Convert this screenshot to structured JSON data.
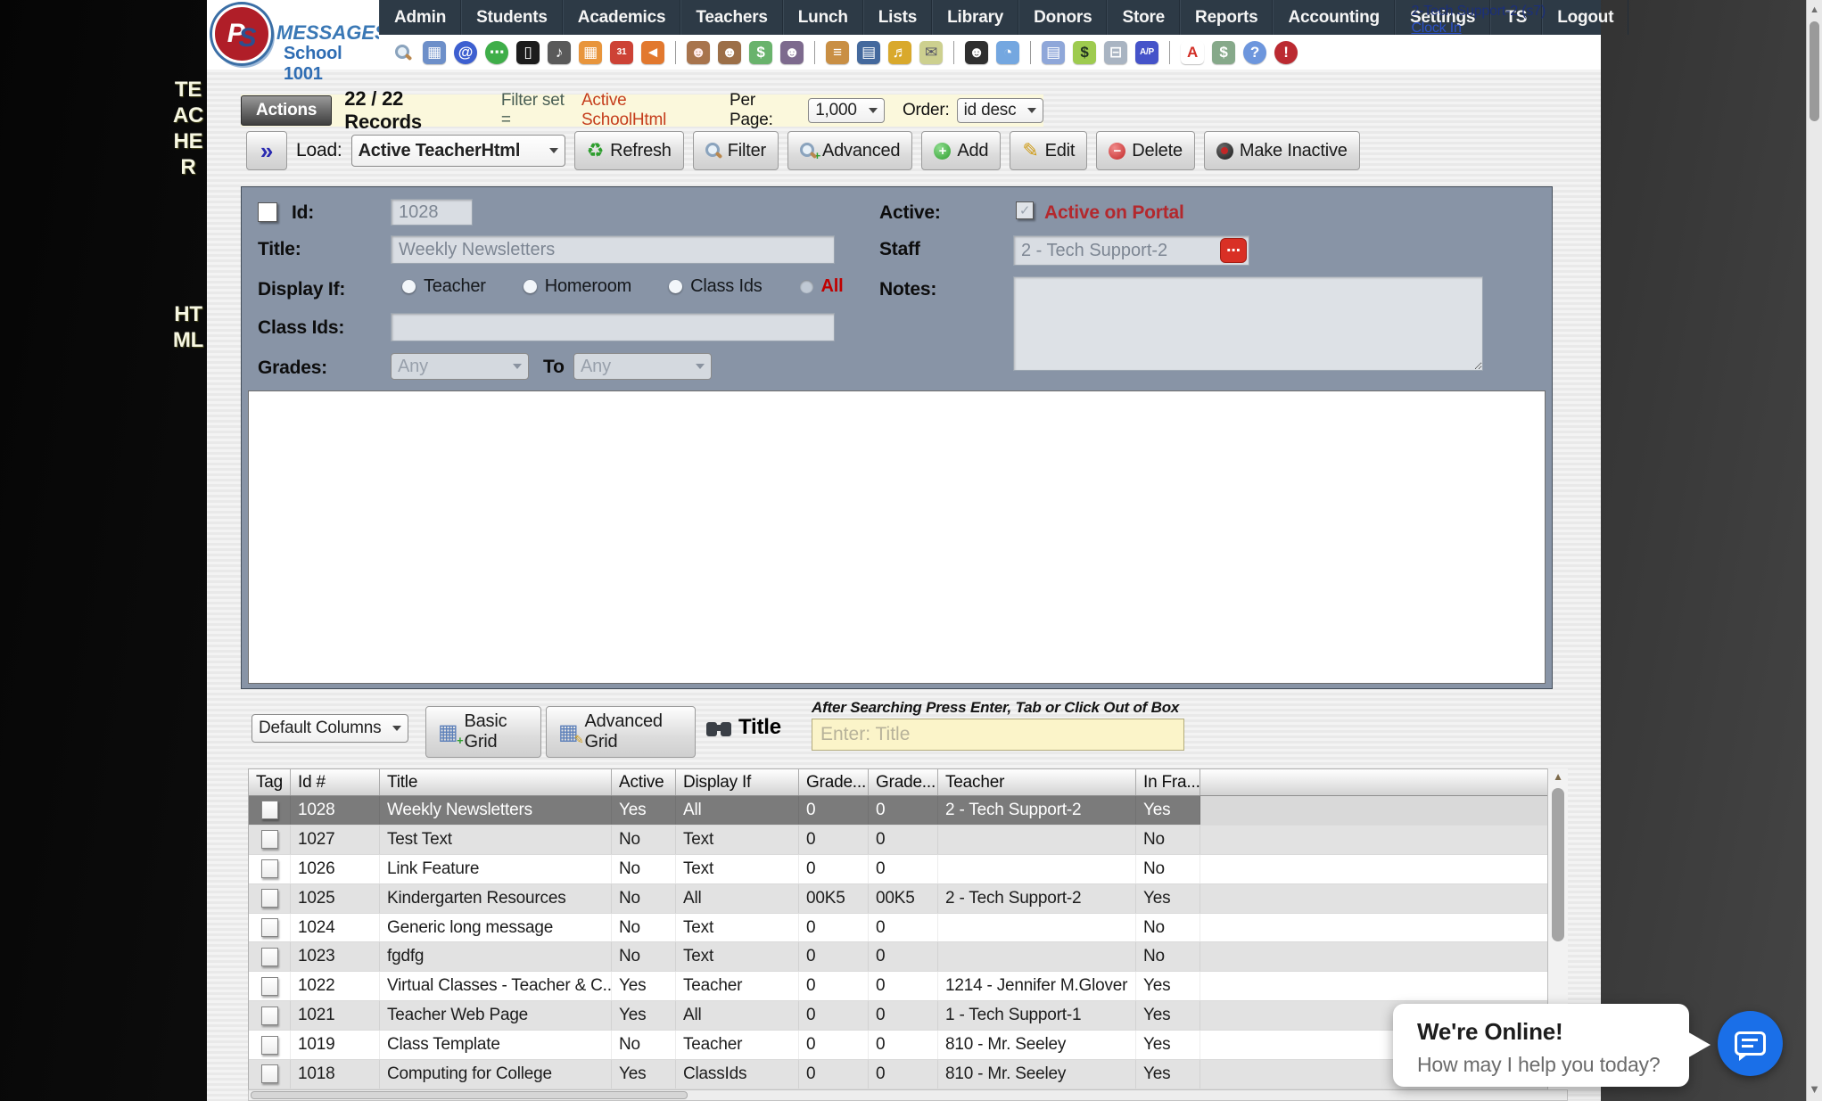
{
  "logo": {
    "monogram_p": "P",
    "monogram_s": "S",
    "brand": "MESSAGES",
    "school": "School 1001"
  },
  "nav": {
    "items": [
      "Admin",
      "Students",
      "Academics",
      "Teachers",
      "Lunch",
      "Lists",
      "Library",
      "Donors",
      "Store",
      "Reports",
      "Accounting",
      "Settings",
      "TS",
      "Logout"
    ]
  },
  "toolbar": {
    "icons": [
      {
        "name": "search",
        "type": "mag"
      },
      {
        "name": "schedule-grid",
        "glyph": "▦",
        "bg": "#6d8fc9",
        "fg": "#ffffff"
      },
      {
        "name": "email",
        "glyph": "@",
        "bg": "#3d5fd0",
        "fg": "#ffffff",
        "round": true
      },
      {
        "name": "text-chat",
        "glyph": "⋯",
        "bg": "#3fae49",
        "fg": "#ffffff",
        "round": true
      },
      {
        "name": "mobile-phone",
        "glyph": "▯",
        "bg": "#1c1c1c",
        "fg": "#ffffff"
      },
      {
        "name": "announcement-speaker",
        "glyph": "♪",
        "bg": "#5a5a5a",
        "fg": "#ffffff"
      },
      {
        "name": "calculator",
        "glyph": "▦",
        "bg": "#e8953c",
        "fg": "#ffffff"
      },
      {
        "name": "calendar",
        "glyph": "31",
        "bg": "#cd4236",
        "fg": "#ffffff"
      },
      {
        "name": "megaphone",
        "glyph": "◄",
        "bg": "#e2782e",
        "fg": "#ffffff"
      },
      {
        "divider": true
      },
      {
        "name": "student-add",
        "glyph": "☻",
        "bg": "#a8744d",
        "fg": "#ffecec"
      },
      {
        "name": "student",
        "glyph": "☻",
        "bg": "#9c6f48",
        "fg": "#ffffff"
      },
      {
        "name": "payments",
        "glyph": "$",
        "bg": "#69b36c",
        "fg": "#ffffff"
      },
      {
        "name": "family",
        "glyph": "☻",
        "bg": "#7d6a8e",
        "fg": "#ffffff"
      },
      {
        "divider": true
      },
      {
        "name": "lunch",
        "glyph": "≡",
        "bg": "#c98f44",
        "fg": "#ffffff"
      },
      {
        "name": "library-book",
        "glyph": "▤",
        "bg": "#44699d",
        "fg": "#ffffff"
      },
      {
        "name": "awards-horn",
        "glyph": "♬",
        "bg": "#d9a92c",
        "fg": "#ffffff"
      },
      {
        "name": "mail-photo",
        "glyph": "✉",
        "bg": "#cdd08f",
        "fg": "#556"
      },
      {
        "divider": true
      },
      {
        "name": "staff",
        "glyph": "☻",
        "bg": "#2f2f2f",
        "fg": "#ffffff"
      },
      {
        "name": "time-clock",
        "glyph": "◔",
        "bg": "#74a7e0",
        "fg": "#ffffff"
      },
      {
        "divider": true
      },
      {
        "name": "report-sheet",
        "glyph": "▤",
        "bg": "#8fa7d9",
        "fg": "#ffffff"
      },
      {
        "name": "check-register",
        "glyph": "$",
        "bg": "#9ecb4f",
        "fg": "#223322"
      },
      {
        "name": "print-checks",
        "glyph": "⊟",
        "bg": "#a9b4c2",
        "fg": "#ffffff"
      },
      {
        "name": "accounts-payable",
        "glyph": "A/P",
        "bg": "#4553c9",
        "fg": "#ffffff"
      },
      {
        "divider": true
      },
      {
        "name": "pdf",
        "glyph": "A",
        "bg": "#ffffff",
        "fg": "#d22f27"
      },
      {
        "name": "print-money",
        "glyph": "$",
        "bg": "#86a98a",
        "fg": "#ffffff"
      },
      {
        "name": "help",
        "glyph": "?",
        "bg": "#6d96dd",
        "fg": "#ffffff",
        "round": true
      },
      {
        "name": "alert",
        "glyph": "!",
        "bg": "#bb2a31",
        "fg": "#ffffff",
        "round": true
      }
    ]
  },
  "user": {
    "name_line": "2-Tech Support-2 (s7)",
    "clock_in": "Clock In"
  },
  "sidebar": {
    "word1": "TEACHER",
    "word2": "HTML"
  },
  "actions_bar": {
    "actions_label": "Actions",
    "records": "22 / 22 Records",
    "filter_label": "Filter set =",
    "filter_value": "Active SchoolHtml",
    "per_page_label": "Per Page:",
    "per_page_value": "1,000",
    "order_label": "Order:",
    "order_value": "id desc"
  },
  "load_bar": {
    "expand_glyph": "»",
    "load_label": "Load:",
    "load_value": "Active TeacherHtml",
    "refresh": "Refresh",
    "filter": "Filter",
    "advanced": "Advanced",
    "add": "Add",
    "edit": "Edit",
    "delete": "Delete",
    "make_inactive": "Make Inactive"
  },
  "form": {
    "id_label": "Id:",
    "id_value": "1028",
    "title_label": "Title:",
    "title_value": "Weekly Newsletters",
    "display_if_label": "Display If:",
    "display_options": [
      "Teacher",
      "Homeroom",
      "Class Ids",
      "All"
    ],
    "selected_display": "All",
    "class_ids_label": "Class Ids:",
    "class_ids_value": "",
    "grades_label": "Grades:",
    "grades_from_value": "Any",
    "grades_to_label": "To",
    "grades_to_value": "Any",
    "active_label": "Active:",
    "active_check": "✓",
    "active_text": "Active on Portal",
    "staff_label": "Staff",
    "staff_value": "2 - Tech Support-2",
    "picker_glyph": "⋯",
    "notes_label": "Notes:",
    "notes_value": ""
  },
  "grid_controls": {
    "columns_select_value": "Default Columns",
    "basic_grid": "Basic Grid",
    "advanced_grid": "Advanced Grid",
    "search_column_label": "Title",
    "search_hint": "After Searching Press Enter, Tab or Click Out of Box",
    "search_placeholder": "Enter: Title",
    "search_value": ""
  },
  "table": {
    "columns": [
      "Tag",
      "Id #",
      "Title",
      "Active",
      "Display If",
      "Grade...",
      "Grade...",
      "Teacher",
      "In Fra..."
    ],
    "rows": [
      {
        "id": "1028",
        "title": "Weekly Newsletters",
        "active": "Yes",
        "display_if": "All",
        "grade1": "0",
        "grade2": "0",
        "teacher": "2 - Tech Support-2",
        "in_fra": "Yes",
        "selected": true
      },
      {
        "id": "1027",
        "title": "Test Text",
        "active": "No",
        "display_if": "Text",
        "grade1": "0",
        "grade2": "0",
        "teacher": "",
        "in_fra": "No"
      },
      {
        "id": "1026",
        "title": "Link Feature",
        "active": "No",
        "display_if": "Text",
        "grade1": "0",
        "grade2": "0",
        "teacher": "",
        "in_fra": "No"
      },
      {
        "id": "1025",
        "title": "Kindergarten Resources",
        "active": "No",
        "display_if": "All",
        "grade1": "00K5",
        "grade2": "00K5",
        "teacher": "2 - Tech Support-2",
        "in_fra": "Yes"
      },
      {
        "id": "1024",
        "title": "Generic long message",
        "active": "No",
        "display_if": "Text",
        "grade1": "0",
        "grade2": "0",
        "teacher": "",
        "in_fra": "No"
      },
      {
        "id": "1023",
        "title": "fgdfg",
        "active": "No",
        "display_if": "Text",
        "grade1": "0",
        "grade2": "0",
        "teacher": "",
        "in_fra": "No"
      },
      {
        "id": "1022",
        "title": "Virtual Classes - Teacher & C...",
        "active": "Yes",
        "display_if": "Teacher",
        "grade1": "0",
        "grade2": "0",
        "teacher": "1214 - Jennifer M.Glover",
        "in_fra": "Yes"
      },
      {
        "id": "1021",
        "title": "Teacher Web Page",
        "active": "Yes",
        "display_if": "All",
        "grade1": "0",
        "grade2": "0",
        "teacher": "1 - Tech Support-1",
        "in_fra": "Yes"
      },
      {
        "id": "1019",
        "title": "Class Template",
        "active": "No",
        "display_if": "Teacher",
        "grade1": "0",
        "grade2": "0",
        "teacher": "810 - Mr. Seeley",
        "in_fra": "Yes"
      },
      {
        "id": "1018",
        "title": "Computing for College",
        "active": "Yes",
        "display_if": "ClassIds",
        "grade1": "0",
        "grade2": "0",
        "teacher": "810 - Mr. Seeley",
        "in_fra": "Yes"
      }
    ]
  },
  "chat": {
    "status": "We're Online!",
    "prompt": "How may I help you today?"
  },
  "colors": {
    "form_panel": "#8894a6",
    "selected_row": "#7b7b7b",
    "filter_value_text": "#c53d1c",
    "active_on_portal_text": "#b3282d",
    "search_box_bg": "#fbf4c9",
    "chat_button": "#1a6fe8",
    "nav_bg": "#2d3a46"
  }
}
